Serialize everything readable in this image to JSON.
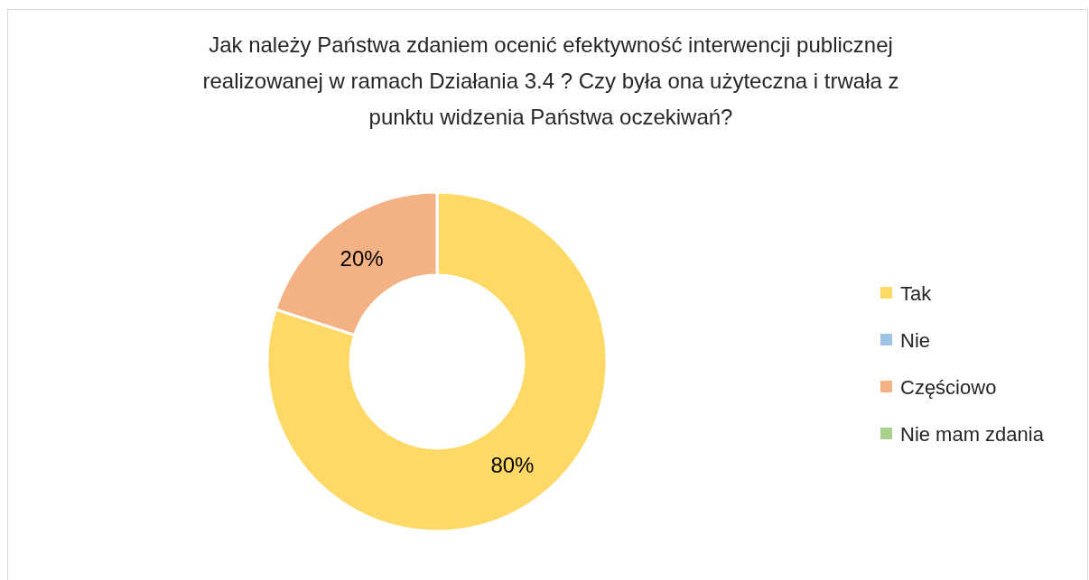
{
  "chart_data": {
    "type": "donut",
    "title": "Jak należy Państwa zdaniem ocenić efektywność interwencji publicznej\nrealizowanej w ramach Działania 3.4 ? Czy była ona użyteczna i trwała z\npunktu widzenia Państwa oczekiwań?",
    "categories": [
      "Tak",
      "Nie",
      "Częściowo",
      "Nie mam zdania"
    ],
    "values": [
      80,
      0,
      20,
      0
    ],
    "colors": [
      "#ffd966",
      "#9dc3e6",
      "#f4b183",
      "#a9d18e"
    ],
    "value_labels": [
      "80%",
      null,
      "20%",
      null
    ],
    "legend": "right"
  }
}
